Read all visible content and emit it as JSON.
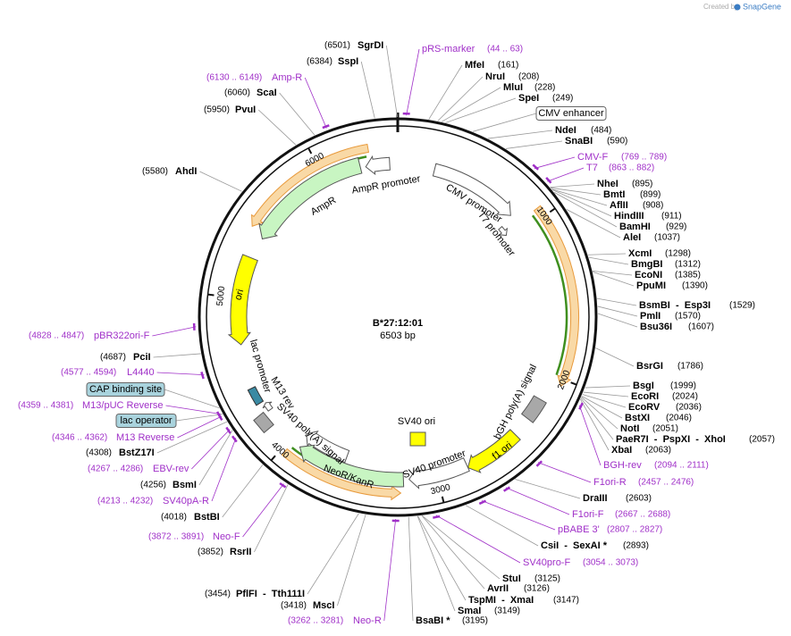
{
  "header": {
    "created_by": "Created by",
    "brand": "SnapGene"
  },
  "map": {
    "name": "B*27:12:01",
    "length": "6503 bp",
    "ring_ticks": [
      "1000",
      "2000",
      "3000",
      "4000",
      "5000",
      "6000"
    ]
  },
  "features": [
    "CMV promoter",
    "T7 promoter",
    "AmpR promoter",
    "AmpR",
    "ori",
    "lac promoter",
    "M13 rev",
    "SV40 poly(A) signal",
    "NeoR/KanR",
    "SV40 promoter",
    "f1 ori",
    "bGH poly(A) signal",
    "SV40 ori"
  ],
  "feature_boxes": [
    "CMV enhancer",
    "CAP binding site",
    "lac operator"
  ],
  "sites": [
    {
      "name": "SgrDI",
      "position": "(6501)"
    },
    {
      "name": "SspI",
      "position": "(6384)"
    },
    {
      "name": "ScaI",
      "position": "(6060)"
    },
    {
      "name": "PvuI",
      "position": "(5950)"
    },
    {
      "name": "AhdI",
      "position": "(5580)"
    },
    {
      "name": "PciI",
      "position": "(4687)"
    },
    {
      "name": "BstZ17I",
      "position": "(4308)"
    },
    {
      "name": "BsmI",
      "position": "(4256)"
    },
    {
      "name": "BstBI",
      "position": "(4018)"
    },
    {
      "name": "RsrII",
      "position": "(3852)"
    },
    {
      "name": "PflFI  -  Tth111I",
      "position": "(3454)"
    },
    {
      "name": "MscI",
      "position": "(3418)"
    },
    {
      "name": "MfeI",
      "position": "(161)"
    },
    {
      "name": "NruI",
      "position": "(208)"
    },
    {
      "name": "MluI",
      "position": "(228)"
    },
    {
      "name": "SpeI",
      "position": "(249)"
    },
    {
      "name": "NdeI",
      "position": "(484)"
    },
    {
      "name": "SnaBI",
      "position": "(590)"
    },
    {
      "name": "NheI",
      "position": "(895)"
    },
    {
      "name": "BmtI",
      "position": "(899)"
    },
    {
      "name": "AflII",
      "position": "(908)"
    },
    {
      "name": "HindIII",
      "position": "(911)"
    },
    {
      "name": "BamHI",
      "position": "(929)"
    },
    {
      "name": "AleI",
      "position": "(1037)"
    },
    {
      "name": "XcmI",
      "position": "(1298)"
    },
    {
      "name": "BmgBI",
      "position": "(1312)"
    },
    {
      "name": "EcoNI",
      "position": "(1385)"
    },
    {
      "name": "PpuMI",
      "position": "(1390)"
    },
    {
      "name": "BsmBI  -  Esp3I",
      "position": "(1529)"
    },
    {
      "name": "PmlI",
      "position": "(1570)"
    },
    {
      "name": "Bsu36I",
      "position": "(1607)"
    },
    {
      "name": "BsrGI",
      "position": "(1786)"
    },
    {
      "name": "BsgI",
      "position": "(1999)"
    },
    {
      "name": "EcoRI",
      "position": "(2024)"
    },
    {
      "name": "EcoRV",
      "position": "(2036)"
    },
    {
      "name": "BstXI",
      "position": "(2046)"
    },
    {
      "name": "NotI",
      "position": "(2051)"
    },
    {
      "name": "PaeR7I  -  PspXI  -  XhoI",
      "position": "(2057)"
    },
    {
      "name": "XbaI",
      "position": "(2063)"
    },
    {
      "name": "DraIII",
      "position": "(2603)"
    },
    {
      "name": "CsiI  -  SexAI *",
      "position": "(2893)"
    },
    {
      "name": "StuI",
      "position": "(3125)"
    },
    {
      "name": "AvrII",
      "position": "(3126)"
    },
    {
      "name": "TspMI  -  XmaI",
      "position": "(3147)"
    },
    {
      "name": "SmaI",
      "position": "(3149)"
    },
    {
      "name": "BsaBI *",
      "position": "(3195)"
    }
  ],
  "primers": [
    {
      "name": "Amp-R",
      "range": "(6130 .. 6149)"
    },
    {
      "name": "pBR322ori-F",
      "range": "(4828 .. 4847)"
    },
    {
      "name": "L4440",
      "range": "(4577 .. 4594)"
    },
    {
      "name": "M13/pUC Reverse",
      "range": "(4359 .. 4381)"
    },
    {
      "name": "M13 Reverse",
      "range": "(4346 .. 4362)"
    },
    {
      "name": "EBV-rev",
      "range": "(4267 .. 4286)"
    },
    {
      "name": "SV40pA-R",
      "range": "(4213 .. 4232)"
    },
    {
      "name": "Neo-F",
      "range": "(3872 .. 3891)"
    },
    {
      "name": "Neo-R",
      "range": "(3262 .. 3281)"
    },
    {
      "name": "pRS-marker",
      "range": "(44 .. 63)"
    },
    {
      "name": "CMV-F",
      "range": "(769 .. 789)"
    },
    {
      "name": "T7",
      "range": "(863 .. 882)"
    },
    {
      "name": "BGH-rev",
      "range": "(2094 .. 2111)"
    },
    {
      "name": "F1ori-R",
      "range": "(2457 .. 2476)"
    },
    {
      "name": "F1ori-F",
      "range": "(2667 .. 2688)"
    },
    {
      "name": "pBABE 3'",
      "range": "(2807 .. 2827)"
    },
    {
      "name": "SV40pro-F",
      "range": "(3054 .. 3073)"
    }
  ]
}
